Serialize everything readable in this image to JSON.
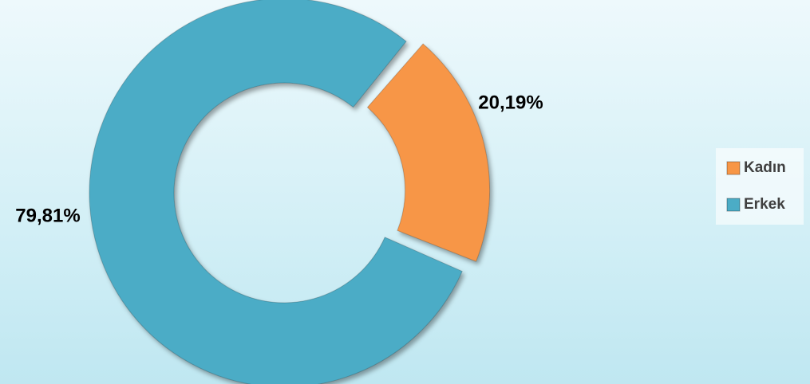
{
  "chart_data": {
    "type": "donut",
    "categories": [
      "Kadın",
      "Erkek"
    ],
    "values": [
      20.19,
      79.81
    ],
    "value_labels": [
      "20,19%",
      "79,81%"
    ],
    "colors": [
      "#f79646",
      "#4bacc6"
    ],
    "legend": "right"
  }
}
